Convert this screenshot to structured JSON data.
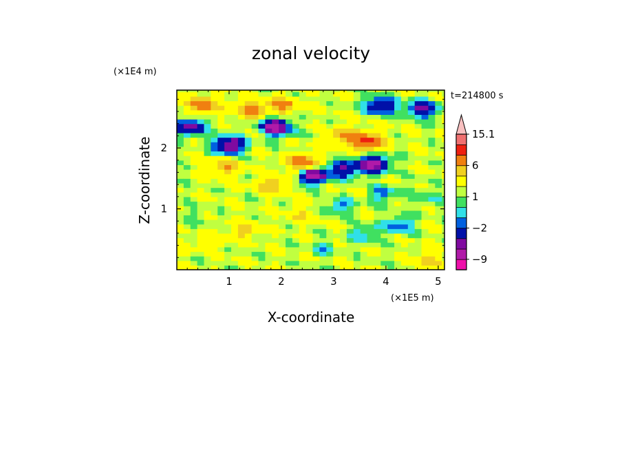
{
  "chart_data": {
    "type": "heatmap",
    "title": "zonal velocity",
    "xlabel": "X-coordinate",
    "ylabel": "Z-coordinate",
    "x_unit": "(×1E5 m)",
    "y_unit": "(×1E4 m)",
    "time_label": "t=214800 s",
    "xlim": [
      0,
      5.12
    ],
    "ylim": [
      0,
      2.95
    ],
    "x_ticks": [
      1,
      2,
      3,
      4,
      5
    ],
    "y_ticks": [
      1,
      2
    ],
    "colorbar": {
      "levels": [
        -12,
        -9,
        -6,
        -4,
        -2,
        -1,
        0,
        1,
        2,
        4,
        6,
        9,
        12,
        15.1
      ],
      "colors": [
        "#ee10aa",
        "#b01aa8",
        "#800aa0",
        "#0010a8",
        "#0060e0",
        "#30e0e8",
        "#40e060",
        "#c0ff40",
        "#ffff00",
        "#f0d020",
        "#f08010",
        "#ee2010",
        "#f07070",
        "#f8c0c0"
      ],
      "labels": [
        {
          "value": 15.1,
          "text": "15.1"
        },
        {
          "value": 6,
          "text": "6"
        },
        {
          "value": 1,
          "text": "1"
        },
        {
          "value": -2,
          "text": "−2"
        },
        {
          "value": -9,
          "text": "−9"
        }
      ],
      "extend": "max"
    },
    "features": [
      {
        "x": 1.0,
        "z": 2.05,
        "value": -9
      },
      {
        "x": 1.9,
        "z": 2.35,
        "value": -9
      },
      {
        "x": 2.6,
        "z": 1.55,
        "value": -9
      },
      {
        "x": 3.2,
        "z": 1.65,
        "value": -6
      },
      {
        "x": 3.75,
        "z": 1.75,
        "value": -9
      },
      {
        "x": 3.9,
        "z": 2.7,
        "value": -7
      },
      {
        "x": 4.7,
        "z": 2.65,
        "value": -7
      },
      {
        "x": 0.25,
        "z": 2.35,
        "value": -7
      },
      {
        "x": 0.5,
        "z": 2.7,
        "value": 6
      },
      {
        "x": 1.4,
        "z": 2.65,
        "value": 5
      },
      {
        "x": 2.0,
        "z": 2.7,
        "value": 5
      },
      {
        "x": 2.4,
        "z": 1.75,
        "value": 7
      },
      {
        "x": 3.2,
        "z": 2.2,
        "value": 5
      },
      {
        "x": 3.65,
        "z": 2.1,
        "value": 8
      },
      {
        "x": 0.9,
        "z": 1.7,
        "value": 4
      },
      {
        "x": 1.8,
        "z": 1.4,
        "value": 4
      },
      {
        "x": 3.1,
        "z": 1.05,
        "value": -3
      },
      {
        "x": 3.6,
        "z": 0.6,
        "value": -3
      },
      {
        "x": 4.25,
        "z": 0.75,
        "value": -4
      },
      {
        "x": 3.95,
        "z": 1.25,
        "value": -3
      },
      {
        "x": 0.3,
        "z": 0.9,
        "value": -1
      },
      {
        "x": 2.8,
        "z": 0.35,
        "value": -2
      },
      {
        "x": 4.8,
        "z": 1.2,
        "value": -2
      },
      {
        "x": 1.3,
        "z": 0.65,
        "value": 3
      },
      {
        "x": 2.4,
        "z": 0.9,
        "value": 2
      },
      {
        "x": 4.8,
        "z": 0.15,
        "value": 3
      },
      {
        "x": 0.6,
        "z": 0.45,
        "value": 2
      }
    ]
  }
}
